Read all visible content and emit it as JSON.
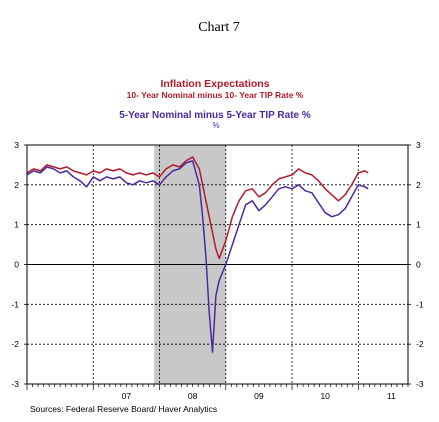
{
  "page_title": "Chart 7",
  "chart_data": {
    "type": "line",
    "title": "Inflation Expectations",
    "legend": [
      {
        "label": "10- Year Nominal minus 10- Year TIP Rate  %",
        "color": "#b01c2e"
      },
      {
        "label": "5-Year Nominal minus 5-Year TIP  Rate  %",
        "color": "#4b2a9e"
      },
      {
        "label": "%",
        "color": "#4b2a9e"
      }
    ],
    "x_ticks": [
      "07",
      "08",
      "09",
      "10",
      "11"
    ],
    "ylim": [
      -3,
      3
    ],
    "y_ticks": [
      "3",
      "2",
      "1",
      "0",
      "-1",
      "-2",
      "-3"
    ],
    "recession_shading": {
      "start": 2007.92,
      "end": 2009.0,
      "color": "#c8c8c8"
    },
    "series": [
      {
        "name": "10- Year Nominal minus 10- Year TIP Rate  %",
        "color": "#b01c2e",
        "x": [
          2006.0,
          2006.1,
          2006.2,
          2006.3,
          2006.4,
          2006.5,
          2006.6,
          2006.7,
          2006.8,
          2006.9,
          2007.0,
          2007.1,
          2007.2,
          2007.3,
          2007.4,
          2007.5,
          2007.6,
          2007.7,
          2007.8,
          2007.9,
          2008.0,
          2008.1,
          2008.2,
          2008.3,
          2008.4,
          2008.5,
          2008.6,
          2008.65,
          2008.7,
          2008.75,
          2008.8,
          2008.85,
          2008.9,
          2009.0,
          2009.1,
          2009.2,
          2009.3,
          2009.4,
          2009.5,
          2009.6,
          2009.7,
          2009.8,
          2009.9,
          2010.0,
          2010.1,
          2010.2,
          2010.3,
          2010.4,
          2010.5,
          2010.6,
          2010.7,
          2010.8,
          2010.9,
          2011.0,
          2011.1,
          2011.15
        ],
        "values": [
          2.3,
          2.4,
          2.35,
          2.5,
          2.45,
          2.4,
          2.45,
          2.35,
          2.3,
          2.25,
          2.35,
          2.3,
          2.4,
          2.35,
          2.4,
          2.3,
          2.25,
          2.3,
          2.25,
          2.3,
          2.2,
          2.4,
          2.5,
          2.45,
          2.6,
          2.7,
          2.4,
          2.0,
          1.6,
          1.2,
          0.8,
          0.4,
          0.15,
          0.6,
          1.2,
          1.6,
          1.85,
          1.9,
          1.7,
          1.8,
          2.0,
          2.15,
          2.2,
          2.25,
          2.4,
          2.3,
          2.25,
          2.1,
          1.9,
          1.75,
          1.6,
          1.75,
          2.0,
          2.3,
          2.35,
          2.3
        ]
      },
      {
        "name": "5-Year Nominal minus 5-Year TIP  Rate  %",
        "color": "#4b2a9e",
        "x": [
          2006.0,
          2006.1,
          2006.2,
          2006.3,
          2006.4,
          2006.5,
          2006.6,
          2006.7,
          2006.8,
          2006.9,
          2007.0,
          2007.1,
          2007.2,
          2007.3,
          2007.4,
          2007.5,
          2007.6,
          2007.7,
          2007.8,
          2007.9,
          2008.0,
          2008.1,
          2008.2,
          2008.3,
          2008.4,
          2008.5,
          2008.6,
          2008.65,
          2008.7,
          2008.75,
          2008.8,
          2008.85,
          2008.9,
          2009.0,
          2009.1,
          2009.2,
          2009.3,
          2009.4,
          2009.5,
          2009.6,
          2009.7,
          2009.8,
          2009.9,
          2010.0,
          2010.1,
          2010.2,
          2010.3,
          2010.4,
          2010.5,
          2010.6,
          2010.7,
          2010.8,
          2010.9,
          2011.0,
          2011.1,
          2011.15
        ],
        "values": [
          2.25,
          2.35,
          2.3,
          2.45,
          2.4,
          2.3,
          2.35,
          2.2,
          2.1,
          1.95,
          2.2,
          2.1,
          2.2,
          2.15,
          2.2,
          2.05,
          2.0,
          2.1,
          2.05,
          2.1,
          2.0,
          2.2,
          2.35,
          2.4,
          2.55,
          2.6,
          2.0,
          1.2,
          0.2,
          -1.2,
          -2.2,
          -0.8,
          -0.4,
          0.0,
          0.5,
          1.0,
          1.5,
          1.6,
          1.35,
          1.5,
          1.7,
          1.9,
          1.95,
          1.9,
          2.0,
          1.85,
          1.8,
          1.55,
          1.3,
          1.2,
          1.25,
          1.4,
          1.7,
          2.0,
          1.95,
          1.9
        ]
      }
    ],
    "source": "Sources:  Federal Reserve Board/ Haver Analytics"
  }
}
